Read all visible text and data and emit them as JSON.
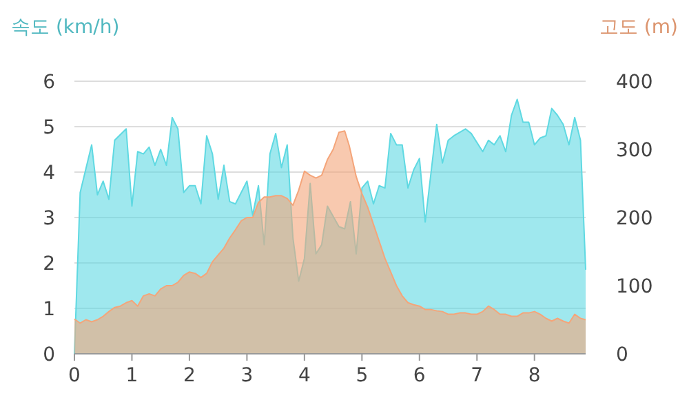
{
  "chart_data": {
    "type": "area",
    "ylabel": "속도 (km/h)",
    "y2label": "고도 (m)",
    "xlim": [
      0,
      8.89
    ],
    "xticks": [
      0,
      1,
      2,
      3,
      4,
      5,
      6,
      7,
      8
    ],
    "ylim": [
      0,
      6
    ],
    "yticks": [
      0,
      1,
      2,
      3,
      4,
      5,
      6
    ],
    "y2lim": [
      0,
      400
    ],
    "y2ticks": [
      0,
      100,
      200,
      300,
      400
    ],
    "grid": "y",
    "series": [
      {
        "color": "#f4a57a",
        "axis": "y2",
        "x": [
          0,
          0.1,
          0.2,
          0.3,
          0.4,
          0.5,
          0.6,
          0.7,
          0.8,
          0.9,
          1.0,
          1.1,
          1.2,
          1.3,
          1.4,
          1.5,
          1.6,
          1.7,
          1.8,
          1.9,
          2.0,
          2.1,
          2.2,
          2.3,
          2.4,
          2.5,
          2.6,
          2.7,
          2.8,
          2.9,
          3.0,
          3.1,
          3.2,
          3.3,
          3.4,
          3.5,
          3.6,
          3.7,
          3.8,
          3.9,
          4.0,
          4.1,
          4.2,
          4.3,
          4.4,
          4.5,
          4.6,
          4.7,
          4.78,
          4.9,
          5.0,
          5.1,
          5.2,
          5.3,
          5.4,
          5.5,
          5.6,
          5.7,
          5.8,
          5.9,
          6.0,
          6.1,
          6.2,
          6.3,
          6.4,
          6.5,
          6.6,
          6.7,
          6.8,
          6.9,
          7.0,
          7.1,
          7.2,
          7.3,
          7.4,
          7.5,
          7.6,
          7.7,
          7.8,
          7.9,
          8.0,
          8.1,
          8.2,
          8.3,
          8.4,
          8.5,
          8.6,
          8.7,
          8.8,
          8.89
        ],
        "values": [
          51,
          45,
          50,
          47,
          50,
          55,
          62,
          68,
          70,
          75,
          78,
          70,
          85,
          88,
          85,
          95,
          100,
          100,
          105,
          115,
          120,
          118,
          112,
          118,
          135,
          145,
          155,
          170,
          182,
          195,
          200,
          200,
          222,
          230,
          230,
          232,
          232,
          228,
          218,
          240,
          268,
          262,
          258,
          262,
          285,
          300,
          325,
          327,
          305,
          260,
          235,
          215,
          190,
          165,
          140,
          120,
          100,
          85,
          75,
          72,
          70,
          65,
          65,
          63,
          62,
          58,
          58,
          60,
          60,
          58,
          58,
          62,
          70,
          65,
          58,
          58,
          55,
          55,
          60,
          60,
          62,
          58,
          52,
          48,
          52,
          48,
          45,
          58,
          52,
          50
        ]
      },
      {
        "color": "#5fd9e2",
        "x": [
          0,
          0.1,
          0.3,
          0.4,
          0.5,
          0.6,
          0.7,
          0.9,
          1.0,
          1.1,
          1.2,
          1.3,
          1.4,
          1.5,
          1.6,
          1.7,
          1.8,
          1.9,
          2.0,
          2.1,
          2.2,
          2.3,
          2.4,
          2.5,
          2.6,
          2.7,
          2.8,
          2.9,
          3.0,
          3.1,
          3.2,
          3.3,
          3.4,
          3.5,
          3.6,
          3.7,
          3.8,
          3.9,
          4.0,
          4.1,
          4.2,
          4.3,
          4.4,
          4.6,
          4.7,
          4.8,
          4.9,
          5.0,
          5.1,
          5.2,
          5.3,
          5.4,
          5.5,
          5.6,
          5.7,
          5.8,
          5.9,
          6.0,
          6.1,
          6.3,
          6.4,
          6.5,
          6.6,
          6.8,
          6.9,
          7.1,
          7.2,
          7.3,
          7.4,
          7.5,
          7.6,
          7.7,
          7.8,
          7.9,
          8.0,
          8.1,
          8.2,
          8.3,
          8.4,
          8.5,
          8.6,
          8.7,
          8.8,
          8.89
        ],
        "values": [
          0,
          3.55,
          4.6,
          3.5,
          3.8,
          3.4,
          4.7,
          4.95,
          3.25,
          4.45,
          4.4,
          4.55,
          4.15,
          4.5,
          4.15,
          5.2,
          4.95,
          3.55,
          3.7,
          3.7,
          3.3,
          4.8,
          4.4,
          3.4,
          4.15,
          3.35,
          3.3,
          3.55,
          3.8,
          3.05,
          3.7,
          2.4,
          4.4,
          4.85,
          4.1,
          4.6,
          2.55,
          1.6,
          2.1,
          3.75,
          2.2,
          2.4,
          3.25,
          2.8,
          2.75,
          3.35,
          2.2,
          3.65,
          3.8,
          3.3,
          3.7,
          3.65,
          4.85,
          4.6,
          4.6,
          3.65,
          4.05,
          4.3,
          2.9,
          5.05,
          4.2,
          4.7,
          4.8,
          4.95,
          4.85,
          4.45,
          4.7,
          4.6,
          4.8,
          4.45,
          5.25,
          5.6,
          5.1,
          5.1,
          4.6,
          4.75,
          4.8,
          5.4,
          5.25,
          5.05,
          4.6,
          5.2,
          4.7,
          1.85
        ]
      }
    ]
  }
}
